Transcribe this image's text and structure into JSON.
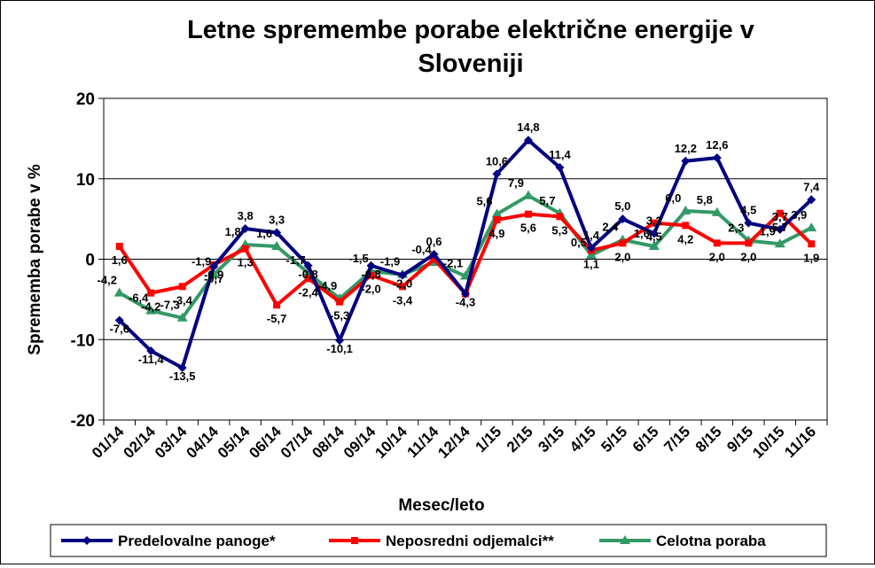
{
  "chart_data": {
    "type": "line",
    "title_line1": "Letne spremembe porabe električne energije v",
    "title_line2": "Sloveniji",
    "xlabel": "Mesec/leto",
    "ylabel": "Sprememba porabe v %",
    "ylim": [
      -20,
      20
    ],
    "yticks": [
      -20,
      -10,
      0,
      10,
      20
    ],
    "ytick_labels": [
      "-20",
      "-10",
      "0",
      "10",
      "20"
    ],
    "grid": "horizontal",
    "legend_position": "bottom",
    "categories": [
      "01/14",
      "02/14",
      "03/14",
      "04/14",
      "05/14",
      "06/14",
      "07/14",
      "08/14",
      "09/14",
      "10/14",
      "11/14",
      "12/14",
      "1/15",
      "2/15",
      "3/15",
      "4/15",
      "5/15",
      "6/15",
      "7/15",
      "8/15",
      "9/15",
      "10/15",
      "11/16"
    ],
    "series": [
      {
        "name": "Predelovalne panoge*",
        "color": "#000080",
        "marker": "diamond",
        "values": [
          -7.6,
          -11.4,
          -13.5,
          -0.9,
          3.8,
          3.3,
          -0.8,
          -10.1,
          -0.8,
          -2.0,
          0.6,
          -4.3,
          10.6,
          14.8,
          11.4,
          1.4,
          5.0,
          3.2,
          12.2,
          12.6,
          4.5,
          3.7,
          7.4
        ],
        "labels": [
          "-7,6",
          "-11,4",
          "-13,5",
          "-0,9",
          "3,8",
          "3,3",
          "-0,8",
          "-10,1",
          "-0,8",
          "-2,0",
          "0,6",
          "-4,3",
          "10,6",
          "14,8",
          "11,4",
          "1,4",
          "5,0",
          "3,2",
          "12,2",
          "12,6",
          "4,5",
          "3,7",
          "7,4"
        ]
      },
      {
        "name": "Neposredni odjemalci**",
        "color": "#ff0000",
        "marker": "square",
        "values": [
          1.6,
          -4.2,
          -3.4,
          -0.7,
          1.3,
          -5.7,
          -2.4,
          -5.3,
          -2.0,
          -3.4,
          0.0,
          -4.3,
          4.9,
          5.6,
          5.3,
          1.1,
          2.0,
          4.5,
          4.2,
          2.0,
          2.0,
          5.7,
          1.9
        ],
        "labels": [
          "1,6",
          "-4,2",
          "-3,4",
          "-0,7",
          "1,3",
          "-5,7",
          "-2,4",
          "-5,3",
          "-2,0",
          "-3,4",
          "",
          "",
          "4,9",
          "5,6",
          "5,3",
          "1,1",
          "2,0",
          "4,5",
          "4,2",
          "2,0",
          "2,0",
          "5,7",
          "1,9"
        ]
      },
      {
        "name": "Celotna poraba",
        "color": "#339966",
        "marker": "triangle",
        "values": [
          -4.2,
          -6.4,
          -7.3,
          -1.9,
          1.8,
          1.6,
          -1.7,
          -4.9,
          -1.5,
          -1.9,
          -0.4,
          -2.1,
          5.6,
          7.9,
          5.7,
          0.5,
          2.4,
          1.6,
          6.0,
          5.8,
          2.3,
          1.9,
          3.9
        ],
        "labels": [
          "-4,2",
          "-6,4",
          "-7,3",
          "-1,9",
          "1,8",
          "1,6",
          "-1,7",
          "-4,9",
          "-1,5",
          "-1,9",
          "-0,4",
          "-2,1",
          "5,6",
          "7,9",
          "5,7",
          "0,5",
          "2,4",
          "1,6",
          "6,0",
          "5,8",
          "2,3",
          "1,9",
          "3,9"
        ]
      }
    ]
  }
}
